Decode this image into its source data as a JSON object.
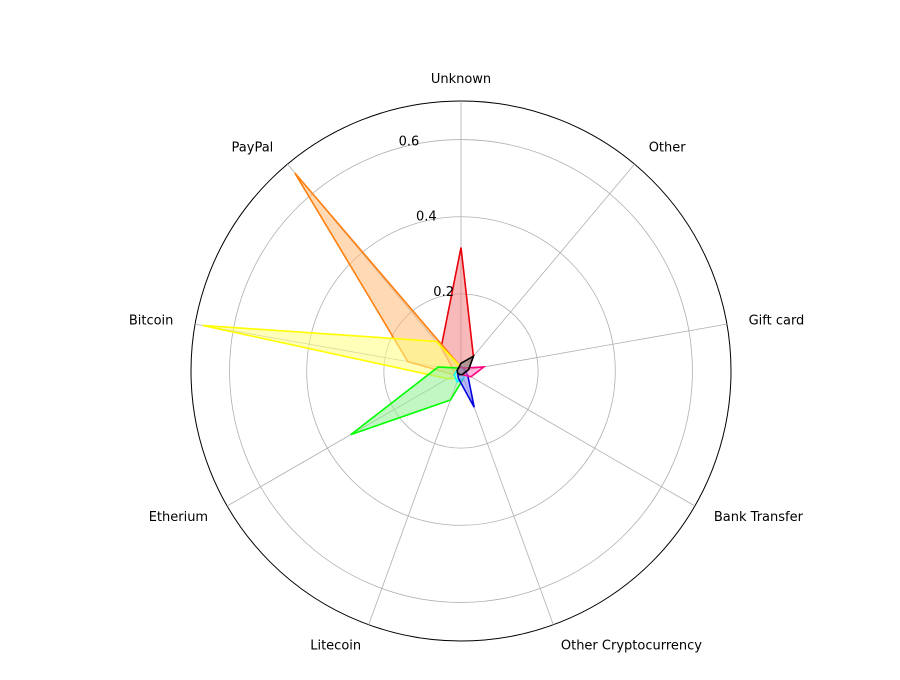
{
  "chart_data": {
    "type": "radar",
    "categories": [
      "Unknown",
      "Other",
      "Gift card",
      "Bank Transfer",
      "Other Cryptocurrency",
      "Litecoin",
      "Etherium",
      "Bitcoin",
      "PayPal"
    ],
    "radial_ticks": [
      0.2,
      0.4,
      0.6
    ],
    "radial_tick_labels": [
      "0.2",
      "0.4",
      "0.6"
    ],
    "rlim": [
      0,
      0.7
    ],
    "grid": true,
    "series": [
      {
        "color": "#e8000b",
        "fill": "#f08080",
        "values": [
          0.32,
          0.05,
          0.02,
          0.01,
          0.01,
          0.01,
          0.02,
          0.02,
          0.08
        ]
      },
      {
        "color": "#ff7f0e",
        "fill": "#ffbb78",
        "values": [
          0.01,
          0.01,
          0.01,
          0.01,
          0.01,
          0.01,
          0.02,
          0.14,
          0.67
        ]
      },
      {
        "color": "#ffff00",
        "fill": "#ffff80",
        "values": [
          0.01,
          0.01,
          0.01,
          0.01,
          0.01,
          0.02,
          0.04,
          0.68,
          0.1
        ]
      },
      {
        "color": "#00ff00",
        "fill": "#90ee90",
        "values": [
          0.01,
          0.01,
          0.01,
          0.01,
          0.02,
          0.08,
          0.33,
          0.06,
          0.01
        ]
      },
      {
        "color": "#00ffff",
        "fill": "#b0ffff",
        "values": [
          0.01,
          0.01,
          0.01,
          0.01,
          0.02,
          0.03,
          0.02,
          0.01,
          0.01
        ]
      },
      {
        "color": "#0000dd",
        "fill": "#8080ff",
        "values": [
          0.01,
          0.01,
          0.01,
          0.02,
          0.1,
          0.02,
          0.01,
          0.01,
          0.01
        ]
      },
      {
        "color": "#ff007f",
        "fill": "#ff80c0",
        "values": [
          0.01,
          0.01,
          0.06,
          0.03,
          0.01,
          0.01,
          0.01,
          0.01,
          0.01
        ]
      },
      {
        "color": "#000000",
        "fill": "#808080",
        "values": [
          0.02,
          0.05,
          0.02,
          0.01,
          0.01,
          0.01,
          0.01,
          0.01,
          0.01
        ]
      }
    ]
  }
}
